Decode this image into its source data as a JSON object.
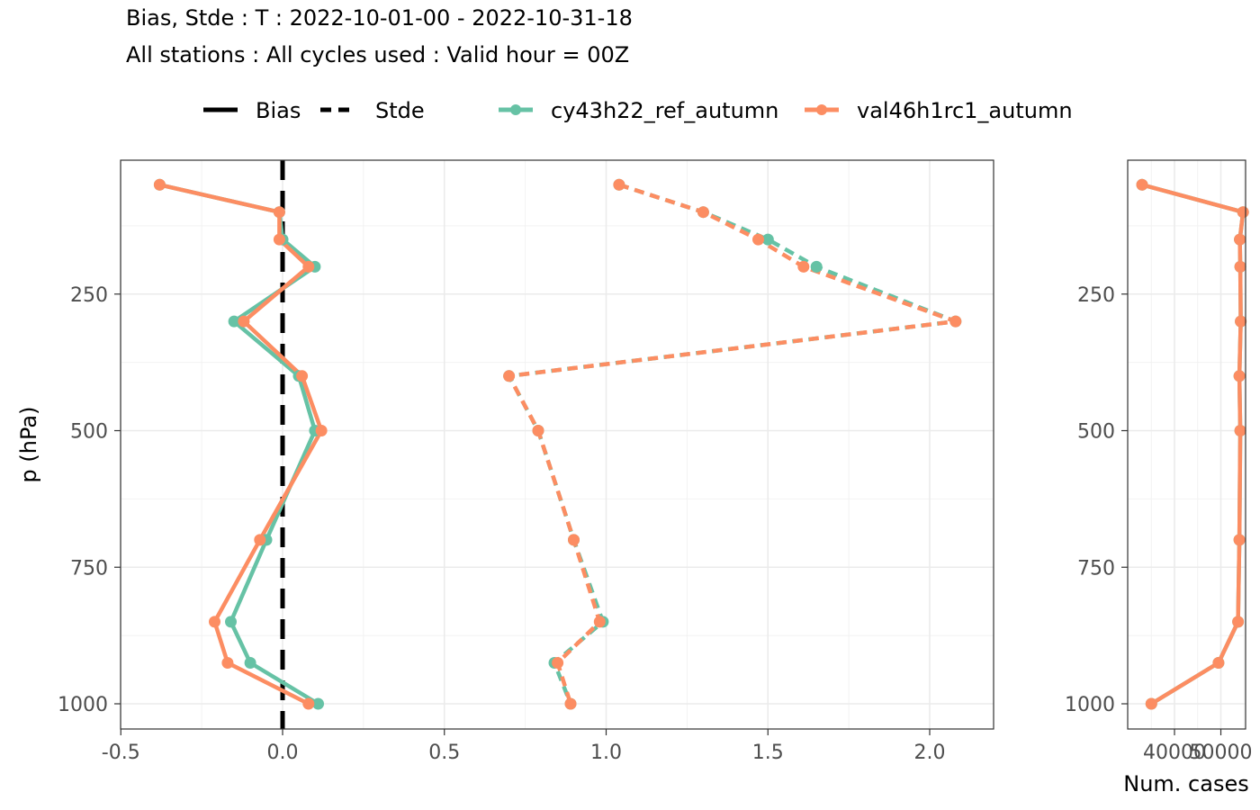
{
  "title_line1": "Bias, Stde : T : 2022-10-01-00 - 2022-10-31-18",
  "title_line2": "All stations : All cycles used : Valid hour = 00Z",
  "colors": {
    "cy43h22_ref_autumn": "#66c2a5",
    "val46h1rc1_autumn": "#fc8d62",
    "zero_line": "#000000",
    "grid_major": "#ebebeb",
    "grid_minor": "#f2f2f2",
    "panel_border": "#333333"
  },
  "chart_data": [
    {
      "type": "line",
      "panel": "bias_stde",
      "ylabel": "p (hPa)",
      "xlabel": "",
      "ylim": [
        1000,
        50
      ],
      "y_reversed": true,
      "xlim": [
        -0.5,
        2.2
      ],
      "grid": true,
      "x_ticks": [
        "-0.5",
        "0.0",
        "0.5",
        "1.0",
        "1.5",
        "2.0"
      ],
      "y_ticks": [
        "250",
        "500",
        "750",
        "1000"
      ],
      "zero_line": 0,
      "legend_position": "top",
      "legend_linetype": [
        {
          "label": "Bias",
          "style": "solid"
        },
        {
          "label": "Stde",
          "style": "dashed"
        }
      ],
      "legend_series": [
        "cy43h22_ref_autumn",
        "val46h1rc1_autumn"
      ],
      "levels": [
        100,
        150,
        200,
        250,
        300,
        400,
        500,
        700,
        850,
        925,
        1000
      ],
      "series": [
        {
          "name": "cy43h22_ref_autumn",
          "stat": "Bias",
          "style": "solid",
          "x": [
            -0.38,
            -0.01,
            0.0,
            0.1,
            -0.15,
            0.05,
            0.1,
            -0.05,
            -0.16,
            -0.1,
            0.11
          ],
          "levels": [
            50,
            100,
            150,
            200,
            300,
            400,
            500,
            700,
            850,
            925,
            1000
          ]
        },
        {
          "name": "val46h1rc1_autumn",
          "stat": "Bias",
          "style": "solid",
          "x": [
            -0.38,
            -0.01,
            -0.01,
            0.08,
            -0.12,
            0.06,
            0.12,
            -0.07,
            -0.21,
            -0.17,
            0.08
          ],
          "levels": [
            50,
            100,
            150,
            200,
            300,
            400,
            500,
            700,
            850,
            925,
            1000
          ]
        },
        {
          "name": "cy43h22_ref_autumn",
          "stat": "Stde",
          "style": "dashed",
          "x": [
            1.04,
            1.3,
            1.5,
            1.65,
            2.08,
            0.7,
            0.79,
            0.9,
            0.99,
            0.84,
            0.89
          ],
          "levels": [
            50,
            100,
            150,
            200,
            300,
            400,
            500,
            700,
            850,
            925,
            1000
          ]
        },
        {
          "name": "val46h1rc1_autumn",
          "stat": "Stde",
          "style": "dashed",
          "x": [
            1.04,
            1.3,
            1.47,
            1.61,
            2.08,
            0.7,
            0.79,
            0.9,
            0.98,
            0.85,
            0.89
          ],
          "levels": [
            50,
            100,
            150,
            200,
            300,
            400,
            500,
            700,
            850,
            925,
            1000
          ]
        }
      ]
    },
    {
      "type": "line",
      "panel": "num_cases",
      "xlabel": "Num. cases",
      "ylabel": "",
      "ylim": [
        1000,
        50
      ],
      "y_reversed": true,
      "xlim": [
        32000,
        56000
      ],
      "grid": true,
      "x_ticks": [
        "40000",
        "50000"
      ],
      "y_ticks": [
        "250",
        "500",
        "750",
        "1000"
      ],
      "series": [
        {
          "name": "cy43h22_ref_autumn",
          "x": [
            33000,
            54800,
            54100,
            54200,
            54300,
            54000,
            54200,
            54000,
            53700,
            49500,
            35000
          ],
          "levels": [
            50,
            100,
            150,
            200,
            300,
            400,
            500,
            700,
            850,
            925,
            1000
          ]
        },
        {
          "name": "val46h1rc1_autumn",
          "x": [
            33000,
            54800,
            54100,
            54200,
            54300,
            54000,
            54200,
            54000,
            53700,
            49500,
            35000
          ],
          "levels": [
            50,
            100,
            150,
            200,
            300,
            400,
            500,
            700,
            850,
            925,
            1000
          ]
        }
      ]
    }
  ]
}
